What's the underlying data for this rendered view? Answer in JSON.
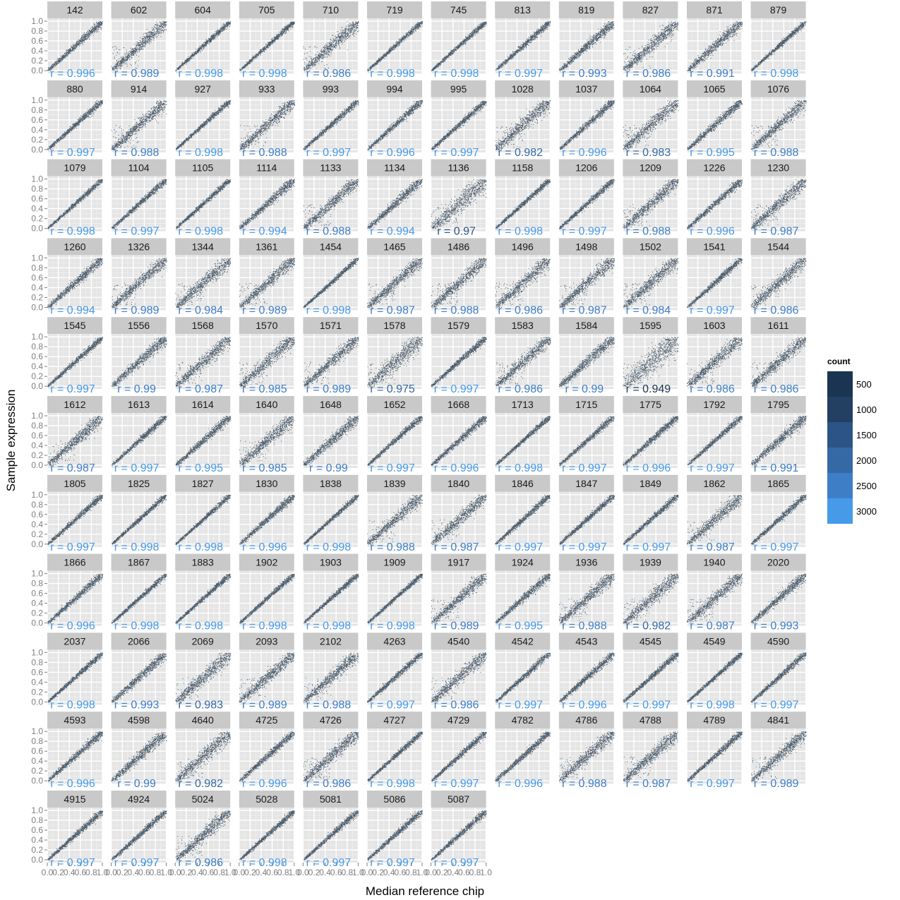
{
  "chart_data": {
    "type": "scatter",
    "xlabel": "Median reference chip",
    "ylabel": "Sample expression",
    "xlim": [
      0,
      1
    ],
    "ylim": [
      0,
      1
    ],
    "x_ticks": [
      "0.0",
      "0.2",
      "0.4",
      "0.6",
      "0.8",
      "1.0"
    ],
    "y_ticks": [
      "0.0",
      "0.2",
      "0.4",
      "0.6",
      "0.8",
      "1.0"
    ],
    "grid": true,
    "legend": {
      "title": "count",
      "position": "right",
      "breaks": [
        "500",
        "1000",
        "1500",
        "2000",
        "2500",
        "3000"
      ],
      "colors": [
        "#1b3452",
        "#233f62",
        "#2c5485",
        "#3569a6",
        "#3d7ec6",
        "#469ae8"
      ]
    },
    "panels": [
      {
        "id": "142",
        "r": "r = 0.996"
      },
      {
        "id": "602",
        "r": "r = 0.989"
      },
      {
        "id": "604",
        "r": "r = 0.998"
      },
      {
        "id": "705",
        "r": "r = 0.998"
      },
      {
        "id": "710",
        "r": "r = 0.986"
      },
      {
        "id": "719",
        "r": "r = 0.998"
      },
      {
        "id": "745",
        "r": "r = 0.998"
      },
      {
        "id": "813",
        "r": "r = 0.997"
      },
      {
        "id": "819",
        "r": "r = 0.993"
      },
      {
        "id": "827",
        "r": "r = 0.986"
      },
      {
        "id": "871",
        "r": "r = 0.991"
      },
      {
        "id": "879",
        "r": "r = 0.998"
      },
      {
        "id": "880",
        "r": "r = 0.997"
      },
      {
        "id": "914",
        "r": "r = 0.988"
      },
      {
        "id": "927",
        "r": "r = 0.998"
      },
      {
        "id": "933",
        "r": "r = 0.988"
      },
      {
        "id": "993",
        "r": "r = 0.997"
      },
      {
        "id": "994",
        "r": "r = 0.996"
      },
      {
        "id": "995",
        "r": "r = 0.997"
      },
      {
        "id": "1028",
        "r": "r = 0.982"
      },
      {
        "id": "1037",
        "r": "r = 0.996"
      },
      {
        "id": "1064",
        "r": "r = 0.983"
      },
      {
        "id": "1065",
        "r": "r = 0.995"
      },
      {
        "id": "1076",
        "r": "r = 0.988"
      },
      {
        "id": "1079",
        "r": "r = 0.998"
      },
      {
        "id": "1104",
        "r": "r = 0.997"
      },
      {
        "id": "1105",
        "r": "r = 0.998"
      },
      {
        "id": "1114",
        "r": "r = 0.994"
      },
      {
        "id": "1133",
        "r": "r = 0.988"
      },
      {
        "id": "1134",
        "r": "r = 0.994"
      },
      {
        "id": "1136",
        "r": "r = 0.97"
      },
      {
        "id": "1158",
        "r": "r = 0.998"
      },
      {
        "id": "1206",
        "r": "r = 0.997"
      },
      {
        "id": "1209",
        "r": "r = 0.988"
      },
      {
        "id": "1226",
        "r": "r = 0.996"
      },
      {
        "id": "1230",
        "r": "r = 0.987"
      },
      {
        "id": "1260",
        "r": "r = 0.994"
      },
      {
        "id": "1326",
        "r": "r = 0.989"
      },
      {
        "id": "1344",
        "r": "r = 0.984"
      },
      {
        "id": "1361",
        "r": "r = 0.989"
      },
      {
        "id": "1454",
        "r": "r = 0.998"
      },
      {
        "id": "1465",
        "r": "r = 0.987"
      },
      {
        "id": "1486",
        "r": "r = 0.988"
      },
      {
        "id": "1496",
        "r": "r = 0.986"
      },
      {
        "id": "1498",
        "r": "r = 0.987"
      },
      {
        "id": "1502",
        "r": "r = 0.984"
      },
      {
        "id": "1541",
        "r": "r = 0.997"
      },
      {
        "id": "1544",
        "r": "r = 0.986"
      },
      {
        "id": "1545",
        "r": "r = 0.997"
      },
      {
        "id": "1556",
        "r": "r = 0.99"
      },
      {
        "id": "1568",
        "r": "r = 0.987"
      },
      {
        "id": "1570",
        "r": "r = 0.985"
      },
      {
        "id": "1571",
        "r": "r = 0.989"
      },
      {
        "id": "1578",
        "r": "r = 0.975"
      },
      {
        "id": "1579",
        "r": "r = 0.997"
      },
      {
        "id": "1583",
        "r": "r = 0.986"
      },
      {
        "id": "1584",
        "r": "r = 0.99"
      },
      {
        "id": "1595",
        "r": "r = 0.949"
      },
      {
        "id": "1603",
        "r": "r = 0.986"
      },
      {
        "id": "1611",
        "r": "r = 0.986"
      },
      {
        "id": "1612",
        "r": "r = 0.987"
      },
      {
        "id": "1613",
        "r": "r = 0.997"
      },
      {
        "id": "1614",
        "r": "r = 0.995"
      },
      {
        "id": "1640",
        "r": "r = 0.985"
      },
      {
        "id": "1648",
        "r": "r = 0.99"
      },
      {
        "id": "1652",
        "r": "r = 0.997"
      },
      {
        "id": "1668",
        "r": "r = 0.996"
      },
      {
        "id": "1713",
        "r": "r = 0.998"
      },
      {
        "id": "1715",
        "r": "r = 0.997"
      },
      {
        "id": "1775",
        "r": "r = 0.996"
      },
      {
        "id": "1792",
        "r": "r = 0.997"
      },
      {
        "id": "1795",
        "r": "r = 0.991"
      },
      {
        "id": "1805",
        "r": "r = 0.997"
      },
      {
        "id": "1825",
        "r": "r = 0.998"
      },
      {
        "id": "1827",
        "r": "r = 0.998"
      },
      {
        "id": "1830",
        "r": "r = 0.996"
      },
      {
        "id": "1838",
        "r": "r = 0.998"
      },
      {
        "id": "1839",
        "r": "r = 0.988"
      },
      {
        "id": "1840",
        "r": "r = 0.987"
      },
      {
        "id": "1846",
        "r": "r = 0.997"
      },
      {
        "id": "1847",
        "r": "r = 0.997"
      },
      {
        "id": "1849",
        "r": "r = 0.997"
      },
      {
        "id": "1862",
        "r": "r = 0.987"
      },
      {
        "id": "1865",
        "r": "r = 0.997"
      },
      {
        "id": "1866",
        "r": "r = 0.996"
      },
      {
        "id": "1867",
        "r": "r = 0.998"
      },
      {
        "id": "1883",
        "r": "r = 0.998"
      },
      {
        "id": "1902",
        "r": "r = 0.998"
      },
      {
        "id": "1903",
        "r": "r = 0.998"
      },
      {
        "id": "1909",
        "r": "r = 0.998"
      },
      {
        "id": "1917",
        "r": "r = 0.989"
      },
      {
        "id": "1924",
        "r": "r = 0.995"
      },
      {
        "id": "1936",
        "r": "r = 0.988"
      },
      {
        "id": "1939",
        "r": "r = 0.982"
      },
      {
        "id": "1940",
        "r": "r = 0.987"
      },
      {
        "id": "2020",
        "r": "r = 0.993"
      },
      {
        "id": "2037",
        "r": "r = 0.998"
      },
      {
        "id": "2066",
        "r": "r = 0.993"
      },
      {
        "id": "2069",
        "r": "r = 0.983"
      },
      {
        "id": "2093",
        "r": "r = 0.989"
      },
      {
        "id": "2102",
        "r": "r = 0.988"
      },
      {
        "id": "4263",
        "r": "r = 0.997"
      },
      {
        "id": "4540",
        "r": "r = 0.986"
      },
      {
        "id": "4542",
        "r": "r = 0.997"
      },
      {
        "id": "4543",
        "r": "r = 0.996"
      },
      {
        "id": "4545",
        "r": "r = 0.997"
      },
      {
        "id": "4549",
        "r": "r = 0.998"
      },
      {
        "id": "4590",
        "r": "r = 0.997"
      },
      {
        "id": "4593",
        "r": "r = 0.996"
      },
      {
        "id": "4598",
        "r": "r = 0.99"
      },
      {
        "id": "4640",
        "r": "r = 0.982"
      },
      {
        "id": "4725",
        "r": "r = 0.996"
      },
      {
        "id": "4726",
        "r": "r = 0.986"
      },
      {
        "id": "4727",
        "r": "r = 0.998"
      },
      {
        "id": "4729",
        "r": "r = 0.997"
      },
      {
        "id": "4782",
        "r": "r = 0.996"
      },
      {
        "id": "4786",
        "r": "r = 0.988"
      },
      {
        "id": "4788",
        "r": "r = 0.987"
      },
      {
        "id": "4789",
        "r": "r = 0.997"
      },
      {
        "id": "4841",
        "r": "r = 0.989"
      },
      {
        "id": "4915",
        "r": "r = 0.997"
      },
      {
        "id": "4924",
        "r": "r = 0.997"
      },
      {
        "id": "5024",
        "r": "r = 0.986"
      },
      {
        "id": "5028",
        "r": "r = 0.998"
      },
      {
        "id": "5081",
        "r": "r = 0.997"
      },
      {
        "id": "5086",
        "r": "r = 0.997"
      },
      {
        "id": "5087",
        "r": "r = 0.997"
      }
    ]
  }
}
